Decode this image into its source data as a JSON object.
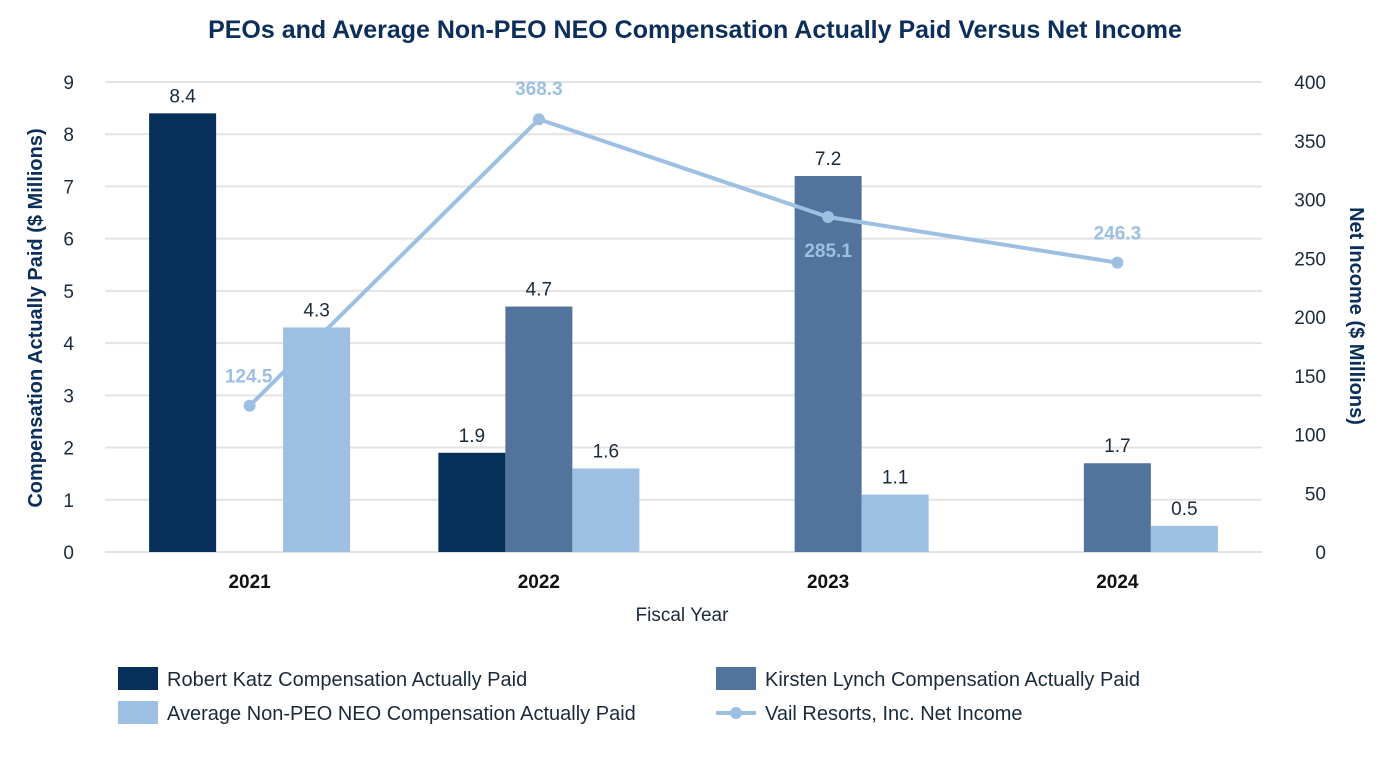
{
  "chart_data": {
    "type": "bar",
    "title": "PEOs and Average Non-PEO NEO Compensation Actually Paid Versus Net Income",
    "xlabel": "Fiscal Year",
    "ylabel": "Compensation Actually Paid ($ Millions)",
    "y2label": "Net Income ($ Millions)",
    "categories": [
      "2021",
      "2022",
      "2023",
      "2024"
    ],
    "ylim": [
      0,
      9
    ],
    "y2lim": [
      0,
      400
    ],
    "yticks": [
      "0",
      "1",
      "2",
      "3",
      "4",
      "5",
      "6",
      "7",
      "8",
      "9"
    ],
    "y2ticks": [
      "0",
      "50",
      "100",
      "150",
      "200",
      "250",
      "300",
      "350",
      "400"
    ],
    "grid": true,
    "legend_position": "bottom",
    "bar_series": [
      {
        "name": "Robert Katz Compensation Actually Paid",
        "color": "#062f5a",
        "values": [
          8.4,
          1.9,
          null,
          null
        ],
        "labels": [
          "8.4",
          "1.9",
          "",
          ""
        ]
      },
      {
        "name": "Kirsten Lynch Compensation Actually Paid",
        "color": "#52749c",
        "values": [
          null,
          4.7,
          7.2,
          1.7
        ],
        "labels": [
          "",
          "4.7",
          "7.2",
          "1.7"
        ]
      },
      {
        "name": "Average Non-PEO NEO Compensation Actually Paid",
        "color": "#9cbfe2",
        "values": [
          4.3,
          1.6,
          1.1,
          0.5
        ],
        "labels": [
          "4.3",
          "1.6",
          "1.1",
          "0.5"
        ]
      }
    ],
    "line_series": {
      "name": "Vail Resorts, Inc. Net Income",
      "color": "#9cbfe2",
      "axis": "right",
      "values": [
        124.5,
        368.3,
        285.1,
        246.3
      ],
      "labels": [
        "124.5",
        "368.3",
        "285.1",
        "246.3"
      ]
    },
    "colors": {
      "title": "#0b2e5a",
      "axis_title": "#0b2e5a",
      "tick": "#1b2a3a",
      "grid": "#e3e3e3",
      "label": "#1b2a3a"
    }
  }
}
